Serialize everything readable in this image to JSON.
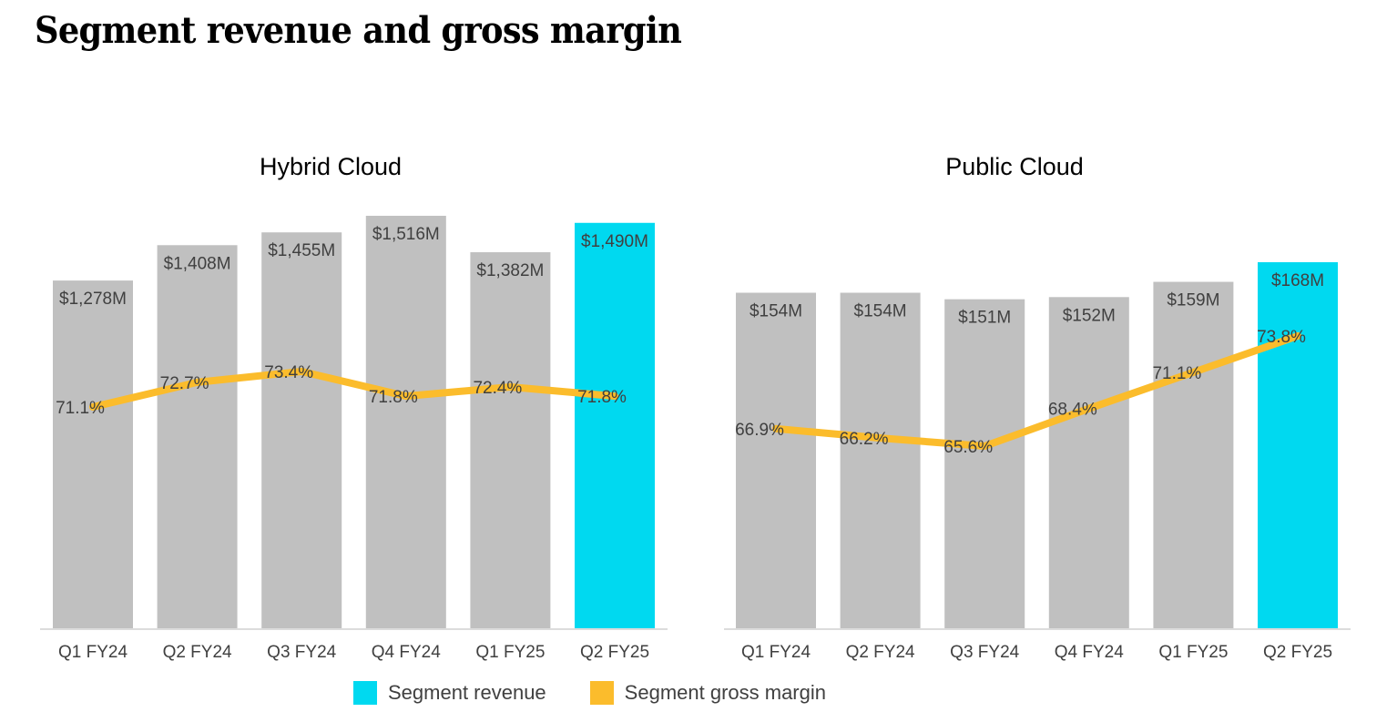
{
  "page": {
    "title": "Segment revenue and gross margin"
  },
  "colors": {
    "bar": "#c0c0c0",
    "highlight": "#00d9f0",
    "line": "#fbbc2c",
    "text": "#404040",
    "axis": "#d0d0d0"
  },
  "legend": {
    "revenue_label": "Segment revenue",
    "margin_label": "Segment gross margin"
  },
  "chart_data": [
    {
      "type": "bar",
      "title": "Hybrid Cloud",
      "categories": [
        "Q1 FY24",
        "Q2 FY24",
        "Q3 FY24",
        "Q4 FY24",
        "Q1 FY25",
        "Q2 FY25"
      ],
      "series": [
        {
          "name": "Segment revenue",
          "values": [
            1278,
            1408,
            1455,
            1516,
            1382,
            1490
          ],
          "labels": [
            "$1,278M",
            "$1,408M",
            "$1,455M",
            "$1,516M",
            "$1,382M",
            "$1,490M"
          ]
        },
        {
          "name": "Segment gross margin",
          "type": "line",
          "values": [
            71.1,
            72.7,
            73.4,
            71.8,
            72.4,
            71.8
          ],
          "labels": [
            "71.1%",
            "72.7%",
            "73.4%",
            "71.8%",
            "72.4%",
            "71.8%"
          ]
        }
      ],
      "highlight_index": 5
    },
    {
      "type": "bar",
      "title": "Public Cloud",
      "categories": [
        "Q1 FY24",
        "Q2 FY24",
        "Q3 FY24",
        "Q4 FY24",
        "Q1 FY25",
        "Q2 FY25"
      ],
      "series": [
        {
          "name": "Segment revenue",
          "values": [
            154,
            154,
            151,
            152,
            159,
            168
          ],
          "labels": [
            "$154M",
            "$154M",
            "$151M",
            "$152M",
            "$159M",
            "$168M"
          ]
        },
        {
          "name": "Segment gross margin",
          "type": "line",
          "values": [
            66.9,
            66.2,
            65.6,
            68.4,
            71.1,
            73.8
          ],
          "labels": [
            "66.9%",
            "66.2%",
            "65.6%",
            "68.4%",
            "71.1%",
            "73.8%"
          ]
        }
      ],
      "highlight_index": 5
    }
  ]
}
